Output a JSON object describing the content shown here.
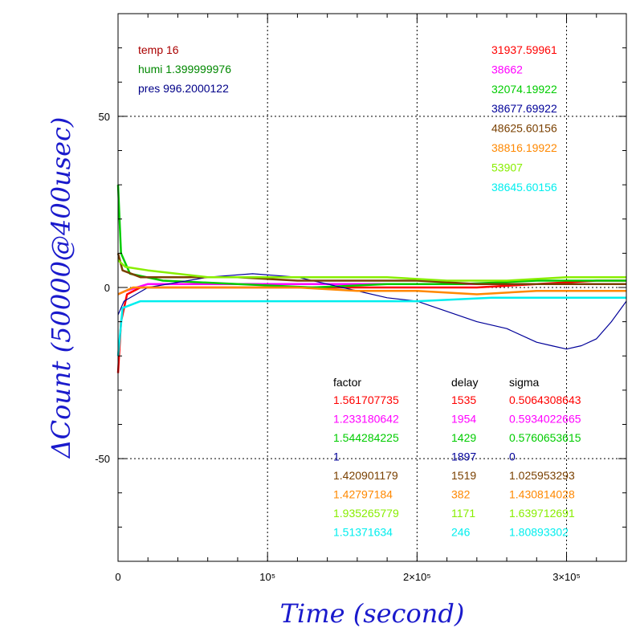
{
  "chart_data": {
    "type": "line",
    "xlabel": "Time (second)",
    "ylabel": "ΔCount (50000@400usec)",
    "xlim": [
      0,
      340000
    ],
    "ylim": [
      -80,
      80
    ],
    "grid": true,
    "x_ticks": [
      {
        "value": 0,
        "label": "0"
      },
      {
        "value": 100000,
        "label": "10⁵"
      },
      {
        "value": 200000,
        "label": "2×10⁵"
      },
      {
        "value": 300000,
        "label": "3×10⁵"
      }
    ],
    "y_ticks": [
      {
        "value": -50,
        "label": "-50"
      },
      {
        "value": 0,
        "label": "0"
      },
      {
        "value": 50,
        "label": "50"
      }
    ],
    "env": [
      {
        "text": "temp 16",
        "color": "#aa0000"
      },
      {
        "text": "humi 1.399999976",
        "color": "#008800"
      },
      {
        "text": "pres 996.2000122",
        "color": "#000088"
      }
    ],
    "table_headers": [
      "factor",
      "delay",
      "sigma"
    ],
    "series": [
      {
        "color": "#ff0000",
        "base": "31937.59961",
        "factor": "1.561707735",
        "delay": "1535",
        "sigma": "0.5064308643",
        "points": [
          [
            0,
            -25
          ],
          [
            2000,
            -10
          ],
          [
            6000,
            -2
          ],
          [
            15000,
            0
          ],
          [
            40000,
            0
          ],
          [
            80000,
            0
          ],
          [
            120000,
            0
          ],
          [
            160000,
            0
          ],
          [
            200000,
            0
          ],
          [
            240000,
            0
          ],
          [
            280000,
            1
          ],
          [
            320000,
            2
          ],
          [
            340000,
            2
          ]
        ]
      },
      {
        "color": "#ff00ff",
        "base": "38662",
        "factor": "1.233180642",
        "delay": "1954",
        "sigma": "0.5934022665",
        "points": [
          [
            0,
            -2
          ],
          [
            5000,
            -1
          ],
          [
            20000,
            1
          ],
          [
            60000,
            1
          ],
          [
            100000,
            1
          ],
          [
            140000,
            1
          ],
          [
            180000,
            1
          ],
          [
            220000,
            1
          ],
          [
            260000,
            1
          ],
          [
            300000,
            1
          ],
          [
            340000,
            1
          ]
        ]
      },
      {
        "color": "#00cc00",
        "base": "32074.19922",
        "factor": "1.544284225",
        "delay": "1429",
        "sigma": "0.5760653615",
        "points": [
          [
            0,
            30
          ],
          [
            2000,
            10
          ],
          [
            8000,
            4
          ],
          [
            30000,
            2
          ],
          [
            80000,
            1
          ],
          [
            130000,
            0
          ],
          [
            180000,
            1
          ],
          [
            230000,
            1
          ],
          [
            280000,
            2
          ],
          [
            340000,
            2
          ]
        ]
      },
      {
        "color": "#000099",
        "base": "38677.69922",
        "factor": "1",
        "delay": "1897",
        "sigma": "0",
        "points": [
          [
            0,
            -8
          ],
          [
            4000,
            -4
          ],
          [
            20000,
            0
          ],
          [
            60000,
            3
          ],
          [
            90000,
            4
          ],
          [
            120000,
            3
          ],
          [
            150000,
            0
          ],
          [
            180000,
            -3
          ],
          [
            200000,
            -4
          ],
          [
            220000,
            -7
          ],
          [
            240000,
            -10
          ],
          [
            260000,
            -12
          ],
          [
            280000,
            -16
          ],
          [
            290000,
            -17
          ],
          [
            300000,
            -18
          ],
          [
            310000,
            -17
          ],
          [
            320000,
            -15
          ],
          [
            330000,
            -10
          ],
          [
            340000,
            -4
          ]
        ]
      },
      {
        "color": "#7a4000",
        "base": "48625.60156",
        "factor": "1.420901179",
        "delay": "1519",
        "sigma": "1.025953293",
        "points": [
          [
            0,
            10
          ],
          [
            3000,
            5
          ],
          [
            15000,
            3
          ],
          [
            40000,
            3
          ],
          [
            80000,
            3
          ],
          [
            120000,
            2
          ],
          [
            160000,
            2
          ],
          [
            200000,
            2
          ],
          [
            240000,
            1
          ],
          [
            280000,
            1
          ],
          [
            340000,
            1
          ]
        ]
      },
      {
        "color": "#ff8800",
        "base": "38816.19922",
        "factor": "1.42797184",
        "delay": "382",
        "sigma": "1.430814028",
        "points": [
          [
            0,
            -2
          ],
          [
            10000,
            0
          ],
          [
            40000,
            0
          ],
          [
            80000,
            0
          ],
          [
            120000,
            0
          ],
          [
            160000,
            -1
          ],
          [
            200000,
            -1
          ],
          [
            240000,
            -2
          ],
          [
            280000,
            -1
          ],
          [
            340000,
            -1
          ]
        ]
      },
      {
        "color": "#88ee00",
        "base": "53907",
        "factor": "1.935265779",
        "delay": "1171",
        "sigma": "1.639712691",
        "points": [
          [
            0,
            8
          ],
          [
            5000,
            6
          ],
          [
            20000,
            5
          ],
          [
            60000,
            3
          ],
          [
            100000,
            3
          ],
          [
            140000,
            3
          ],
          [
            180000,
            3
          ],
          [
            220000,
            2
          ],
          [
            260000,
            2
          ],
          [
            300000,
            3
          ],
          [
            340000,
            3
          ]
        ]
      },
      {
        "color": "#00eeee",
        "base": "38645.60156",
        "factor": "1.51371634",
        "delay": "246",
        "sigma": "1.80893302",
        "points": [
          [
            0,
            -20
          ],
          [
            3000,
            -6
          ],
          [
            15000,
            -4
          ],
          [
            50000,
            -4
          ],
          [
            100000,
            -4
          ],
          [
            150000,
            -4
          ],
          [
            200000,
            -4
          ],
          [
            250000,
            -3
          ],
          [
            300000,
            -3
          ],
          [
            340000,
            -3
          ]
        ]
      }
    ]
  }
}
